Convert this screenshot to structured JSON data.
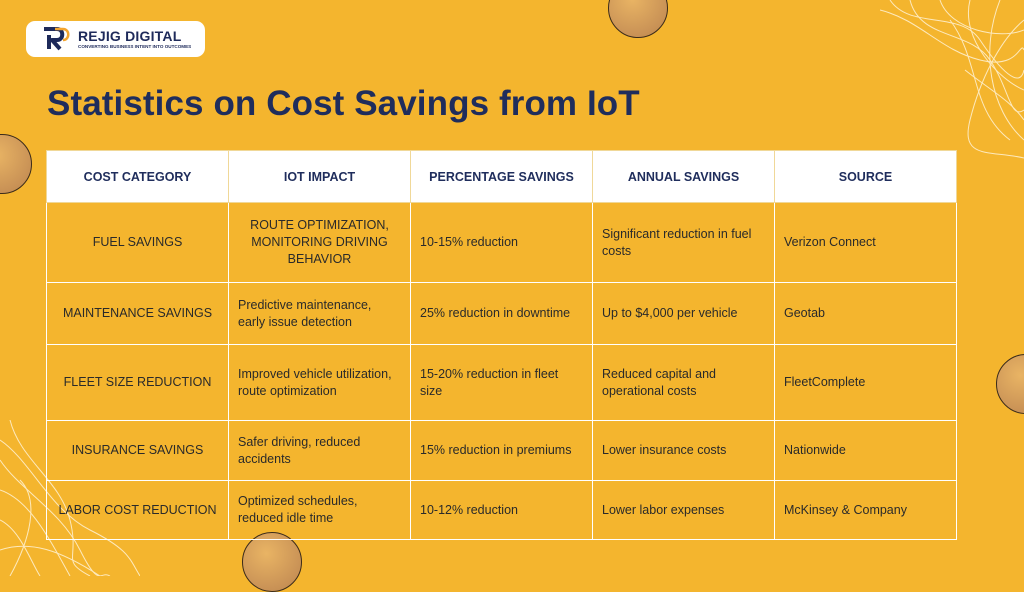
{
  "logo": {
    "name": "REJIG DIGITAL",
    "tagline": "CONVERTING BUSINESS INTENT INTO OUTCOMES"
  },
  "title": "Statistics on Cost Savings from IoT",
  "colors": {
    "background": "#F4B52E",
    "title": "#1F2D5C",
    "header_bg": "#FFFFFF",
    "border": "#FFFFFF"
  },
  "table": {
    "headers": [
      "COST CATEGORY",
      "IOT IMPACT",
      "PERCENTAGE SAVINGS",
      "ANNUAL SAVINGS",
      "SOURCE"
    ],
    "rows": [
      [
        "FUEL SAVINGS",
        "ROUTE OPTIMIZATION, MONITORING DRIVING BEHAVIOR",
        "10-15% reduction",
        "Significant reduction in fuel costs",
        "Verizon Connect"
      ],
      [
        "MAINTENANCE SAVINGS",
        "Predictive maintenance, early issue detection",
        "25% reduction in downtime",
        "Up to $4,000 per vehicle",
        "Geotab"
      ],
      [
        "FLEET SIZE REDUCTION",
        "Improved vehicle utilization, route optimization",
        "15-20% reduction in fleet size",
        "Reduced capital and operational costs",
        "FleetComplete"
      ],
      [
        "INSURANCE SAVINGS",
        "Safer driving, reduced accidents",
        "15% reduction in premiums",
        "Lower insurance costs",
        "Nationwide"
      ],
      [
        "LABOR COST REDUCTION",
        "Optimized schedules, reduced idle time",
        "10-12% reduction",
        "Lower labor expenses",
        "McKinsey & Company"
      ]
    ]
  }
}
